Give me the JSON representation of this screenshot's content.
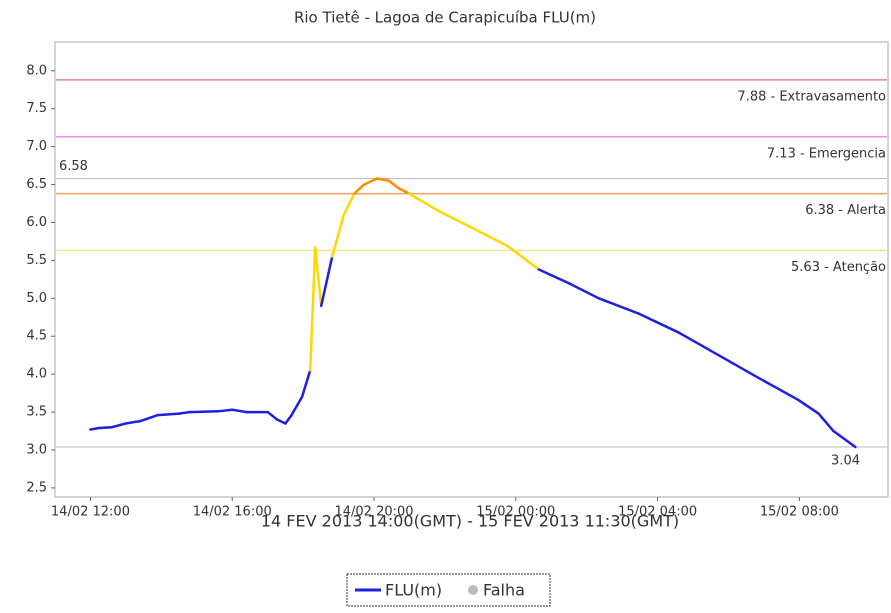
{
  "chart_data": {
    "type": "line",
    "title": "Rio Tietê - Lagoa de Carapicuíba FLU(m)",
    "x_label": "14 FEV 2013 14:00(GMT) - 15 FEV 2013 11:30(GMT)",
    "xlim": [
      11,
      34.5
    ],
    "xticks": [
      {
        "value": 12,
        "label": "14/02 12:00"
      },
      {
        "value": 16,
        "label": "14/02 16:00"
      },
      {
        "value": 20,
        "label": "14/02 20:00"
      },
      {
        "value": 24,
        "label": "15/02 00:00"
      },
      {
        "value": 28,
        "label": "15/02 04:00"
      },
      {
        "value": 32,
        "label": "15/02 08:00"
      }
    ],
    "ylim": [
      2.38,
      8.38
    ],
    "yticks": [
      {
        "value": 2.5,
        "label": "2.5"
      },
      {
        "value": 3,
        "label": "3.0"
      },
      {
        "value": 3.5,
        "label": "3.5"
      },
      {
        "value": 4,
        "label": "4.0"
      },
      {
        "value": 4.5,
        "label": "4.5"
      },
      {
        "value": 5,
        "label": "5.0"
      },
      {
        "value": 5.5,
        "label": "5.5"
      },
      {
        "value": 6,
        "label": "6.0"
      },
      {
        "value": 6.5,
        "label": "6.5"
      },
      {
        "value": 7,
        "label": "7.0"
      },
      {
        "value": 7.5,
        "label": "7.5"
      },
      {
        "value": 8,
        "label": "8.0"
      }
    ],
    "thresholds": [
      {
        "value": 7.88,
        "label": "7.88 - Extravasamento",
        "color": "#f08080"
      },
      {
        "value": 7.13,
        "label": "7.13 - Emergencia",
        "color": "#f08cf0"
      },
      {
        "value": 6.38,
        "label": "6.38 - Alerta",
        "color": "#f4a460"
      },
      {
        "value": 5.63,
        "label": "5.63 - Atenção",
        "color": "#f0e68c"
      }
    ],
    "extremes": [
      {
        "value": 6.58,
        "label": "6.58",
        "side": "left"
      },
      {
        "value": 3.04,
        "label": "3.04",
        "side": "right"
      }
    ],
    "series": [
      {
        "name": "FLU(m)",
        "color": "#1f1fe0",
        "x": [
          12,
          12.25,
          12.6,
          13,
          13.4,
          13.9,
          14.5,
          14.8,
          15.6,
          16,
          16.4,
          17,
          17.27,
          17.5,
          17.66,
          17.97,
          18.2,
          18.34,
          18.51,
          18.82,
          19.15,
          19.44,
          19.72,
          20.08,
          20.42,
          20.7,
          20.99,
          21.83,
          22.68,
          23.52,
          23.8,
          24.65,
          25.49,
          26.34,
          27.46,
          28.59,
          29.72,
          30.85,
          31.97,
          32.54,
          32.96,
          33.58
        ],
        "values": [
          3.27,
          3.29,
          3.3,
          3.35,
          3.38,
          3.46,
          3.48,
          3.5,
          3.51,
          3.53,
          3.5,
          3.5,
          3.4,
          3.35,
          3.45,
          3.7,
          4.05,
          5.67,
          4.9,
          5.55,
          6.1,
          6.38,
          6.5,
          6.58,
          6.55,
          6.45,
          6.38,
          6.15,
          5.95,
          5.75,
          5.68,
          5.38,
          5.2,
          5.0,
          4.8,
          4.55,
          4.25,
          3.95,
          3.66,
          3.48,
          3.25,
          3.04
        ]
      }
    ],
    "legend": [
      {
        "name": "FLU(m)",
        "color": "#1f1fe0"
      },
      {
        "name": "Falha",
        "color": "#bbbbbb"
      }
    ]
  }
}
